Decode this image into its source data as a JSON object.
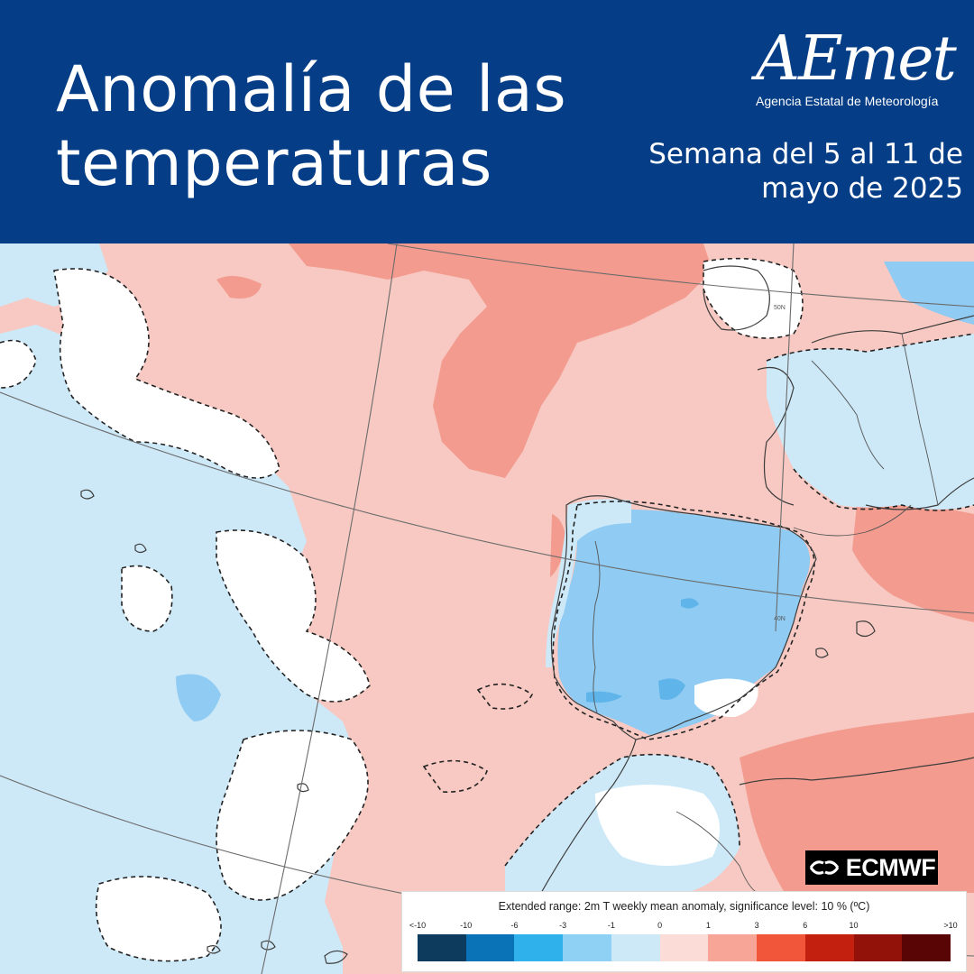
{
  "header": {
    "title_line1": "Anomalía de las",
    "title_line2": "temperaturas",
    "logo_text": "AEmet",
    "logo_subtitle": "Agencia Estatal de Meteorología",
    "week_line1": "Semana del 5 al 11 de",
    "week_line2": "mayo de 2025"
  },
  "map": {
    "grid_labels": [
      "50N",
      "40N"
    ],
    "colors": {
      "warm_1": "#f7c9c2",
      "warm_3": "#f29b8e",
      "neutral": "#ffffff",
      "cool_1": "#cde9f8",
      "cool_3": "#8fcbf2",
      "grid": "#6b6b6b",
      "coast": "#444444"
    }
  },
  "badge": {
    "label": "ECMWF",
    "icon": "ecmwf-logo-icon"
  },
  "legend": {
    "title": "Extended range: 2m T weekly mean anomaly, significance level: 10 % (ºC)",
    "ticks": [
      "<-10",
      "-10",
      "-6",
      "-3",
      "-1",
      "0",
      "1",
      "3",
      "6",
      "10",
      ">10"
    ],
    "colors": [
      "#0c3b5e",
      "#0a73b8",
      "#2fb2ec",
      "#8fd0f5",
      "#cde9f8",
      "#fcdcd6",
      "#f7a597",
      "#f2563a",
      "#c4200f",
      "#921109",
      "#5a0505"
    ]
  }
}
